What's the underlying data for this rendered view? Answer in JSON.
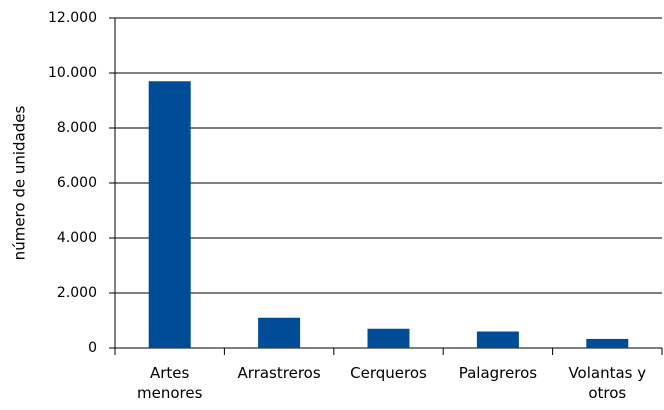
{
  "chart_data": {
    "type": "bar",
    "y_label": "número de unidades",
    "categories": [
      "Artes menores",
      "Arrastreros",
      "Cerqueros",
      "Palagreros",
      "Volantas y otros"
    ],
    "values": [
      9700,
      1100,
      700,
      600,
      330
    ],
    "color": "#004c97",
    "ylim": [
      0,
      12000
    ],
    "yticks": [
      0,
      {
        "value": 2000,
        "label": "2.000"
      },
      {
        "value": 4000,
        "label": "4.000"
      },
      {
        "value": 6000,
        "label": "6.000"
      },
      {
        "value": 8000,
        "label": "8.000"
      },
      {
        "value": 10000,
        "label": "10.000"
      },
      {
        "value": 12000,
        "label": "12.000"
      }
    ],
    "grid": true
  }
}
